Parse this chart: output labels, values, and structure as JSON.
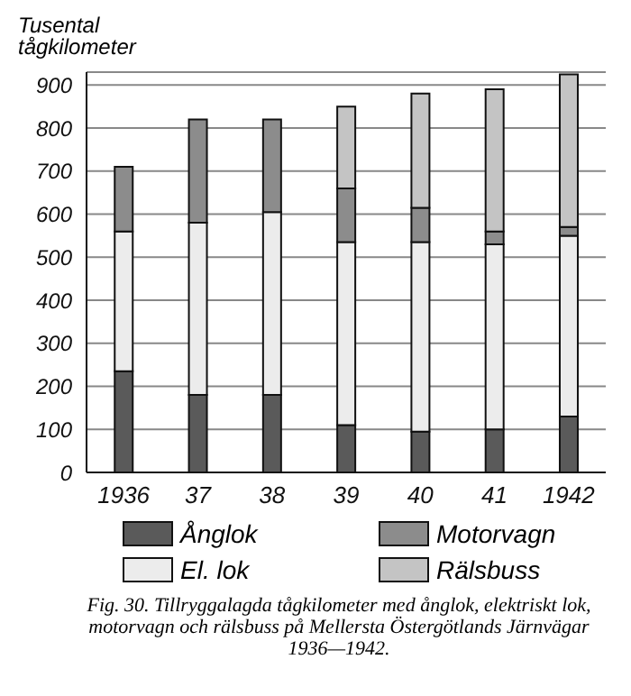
{
  "chart_data": {
    "type": "bar",
    "stacked": true,
    "ylabel": "Tusental tågkilometer",
    "categories": [
      "1936",
      "37",
      "38",
      "39",
      "40",
      "41",
      "1942"
    ],
    "series": [
      {
        "name": "Ånglok",
        "color": "#5a5a5a",
        "values": [
          235,
          180,
          180,
          110,
          95,
          100,
          130
        ]
      },
      {
        "name": "El. lok",
        "color": "#ececec",
        "values": [
          325,
          400,
          425,
          425,
          440,
          430,
          420
        ]
      },
      {
        "name": "Motorvagn",
        "color": "#8c8c8c",
        "values": [
          150,
          240,
          215,
          125,
          80,
          30,
          20
        ]
      },
      {
        "name": "Rälsbuss",
        "color": "#c4c4c4",
        "values": [
          0,
          0,
          0,
          190,
          265,
          330,
          355
        ]
      }
    ],
    "ylim": [
      0,
      930
    ],
    "yticks": [
      0,
      100,
      200,
      300,
      400,
      500,
      600,
      700,
      800,
      900
    ],
    "grid": "y",
    "legend": "bottom",
    "annotations": [
      "Fig. 30. Tillryggalagda tågkilometer med ånglok, elektriskt lok, motorvagn och rälsbuss på Mellersta Östergötlands Järnvägar 1936—1942."
    ]
  }
}
